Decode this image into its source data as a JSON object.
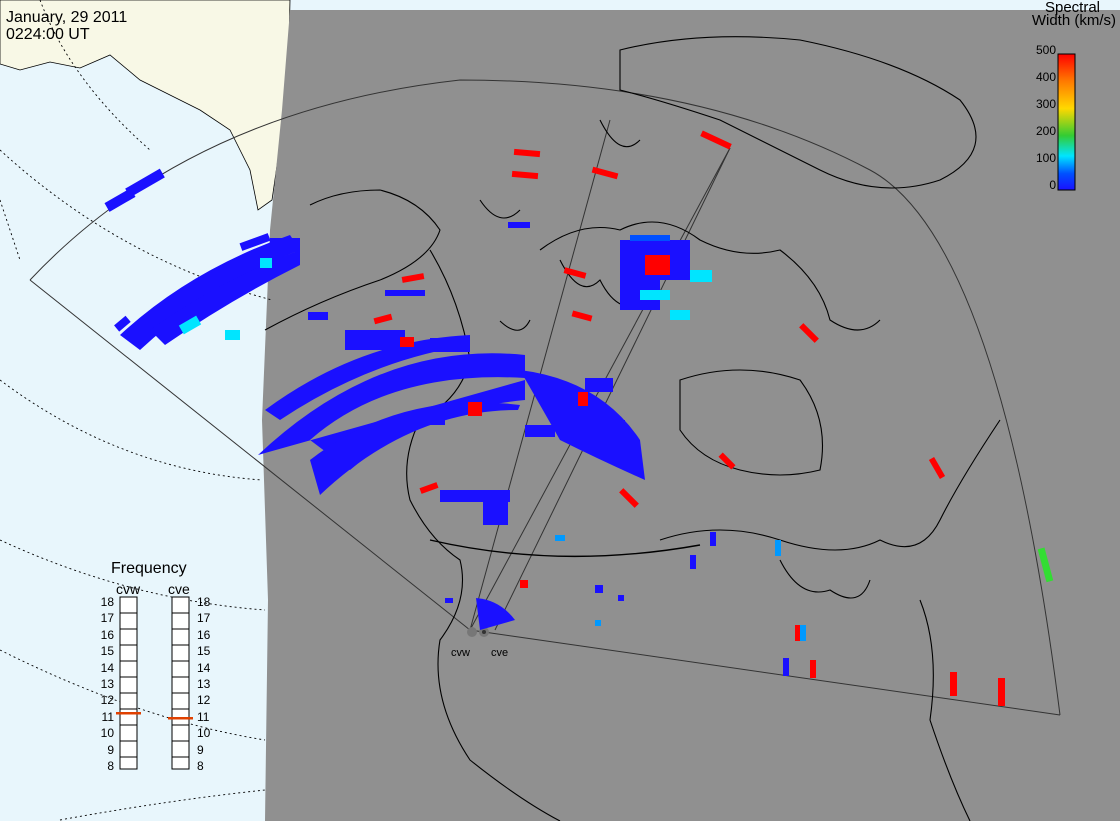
{
  "header": {
    "date": "January, 29 2011",
    "time": "0224:00 UT"
  },
  "colorbar": {
    "title_line1": "Spectral",
    "title_line2": "Width (km/s)",
    "ticks": [
      "500",
      "400",
      "300",
      "200",
      "100",
      "0"
    ],
    "colors": [
      "#ff0000",
      "#ff7a00",
      "#ffd800",
      "#33cc33",
      "#00e5ff",
      "#0050ff",
      "#1a10ff"
    ]
  },
  "frequency_panel": {
    "title": "Frequency",
    "radars": [
      {
        "name": "cvw",
        "frequency_mhz": 10.9
      },
      {
        "name": "cve",
        "frequency_mhz": 10.6
      }
    ],
    "ticks": [
      "18",
      "17",
      "16",
      "15",
      "14",
      "13",
      "12",
      "11",
      "10",
      "9",
      "8"
    ],
    "marker_color": "#e04000"
  },
  "radars": {
    "labels": [
      "cvw",
      "cve"
    ]
  },
  "colors": {
    "background_gray": "#909090",
    "ocean": "#e8f6fc",
    "land": "#f8f8e6",
    "scatter_blue": "#1a10ff",
    "scatter_red": "#ff0000"
  }
}
